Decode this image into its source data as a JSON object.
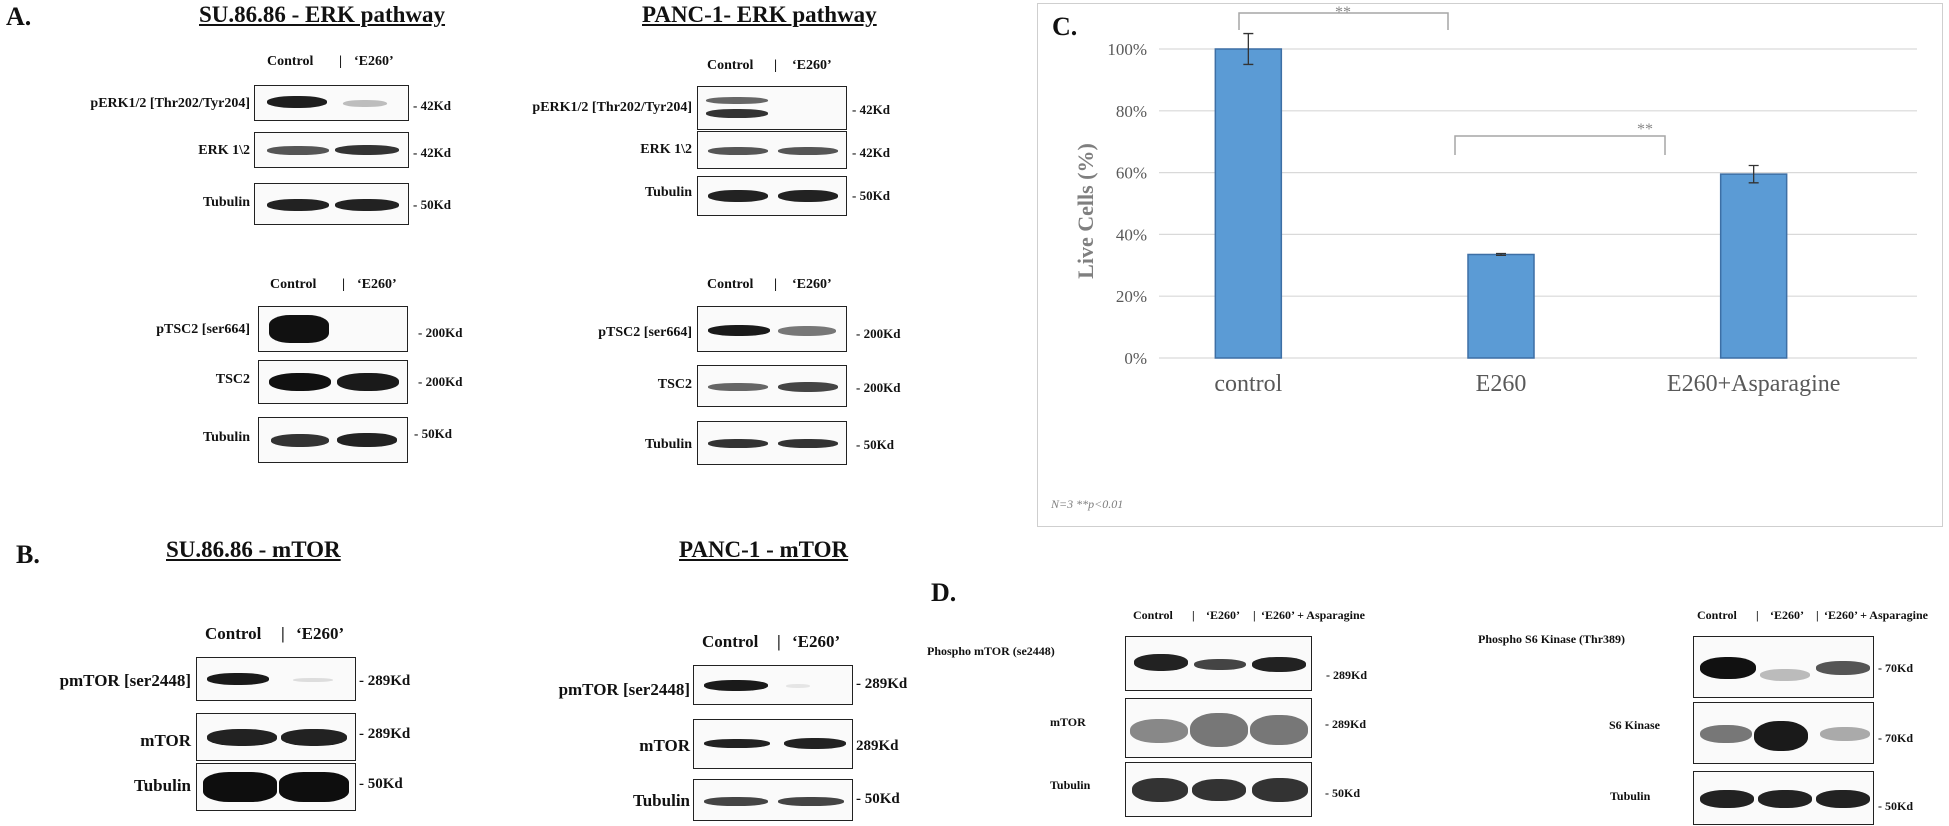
{
  "sectionA": {
    "letter": "A.",
    "left": {
      "title": "SU.86.86 - ERK pathway",
      "top": {
        "header": [
          "Control",
          "|",
          "‘E260’"
        ],
        "rows": [
          {
            "label": "pERK1/2 [Thr202/Tyr204]",
            "mw": "- 42Kd"
          },
          {
            "label": "ERK 1\\2",
            "mw": "- 42Kd"
          },
          {
            "label": "Tubulin",
            "mw": "- 50Kd"
          }
        ]
      },
      "bottom": {
        "header": [
          "Control",
          "|",
          "‘E260’"
        ],
        "rows": [
          {
            "label": "pTSC2 [ser664]",
            "mw": "- 200Kd"
          },
          {
            "label": "TSC2",
            "mw": "- 200Kd"
          },
          {
            "label": "Tubulin",
            "mw": "- 50Kd"
          }
        ]
      }
    },
    "right": {
      "title": "PANC-1- ERK pathway",
      "top": {
        "header": [
          "Control",
          "|",
          "‘E260’"
        ],
        "rows": [
          {
            "label": "pERK1/2 [Thr202/Tyr204]",
            "mw": "- 42Kd"
          },
          {
            "label": "ERK 1\\2",
            "mw": "- 42Kd"
          },
          {
            "label": "Tubulin",
            "mw": "- 50Kd"
          }
        ]
      },
      "bottom": {
        "header": [
          "Control",
          "|",
          "‘E260’"
        ],
        "rows": [
          {
            "label": "pTSC2 [ser664]",
            "mw": "- 200Kd"
          },
          {
            "label": "TSC2",
            "mw": "- 200Kd"
          },
          {
            "label": "Tubulin",
            "mw": "- 50Kd"
          }
        ]
      }
    }
  },
  "sectionB": {
    "letter": "B.",
    "left": {
      "title": "SU.86.86 - mTOR",
      "header": [
        "Control",
        "|",
        "‘E260’"
      ],
      "rows": [
        {
          "label": "pmTOR [ser2448]",
          "mw": "- 289Kd"
        },
        {
          "label": "mTOR",
          "mw": "- 289Kd"
        },
        {
          "label": "Tubulin",
          "mw": "- 50Kd"
        }
      ]
    },
    "right": {
      "title": "PANC-1 - mTOR",
      "header": [
        "Control",
        "|",
        "‘E260’"
      ],
      "rows": [
        {
          "label": "pmTOR [ser2448]",
          "mw": "- 289Kd"
        },
        {
          "label": "mTOR",
          "mw": "289Kd"
        },
        {
          "label": "Tubulin",
          "mw": "- 50Kd"
        }
      ]
    }
  },
  "sectionC": {
    "letter": "C.",
    "footnote": "N=3 **p<0.01",
    "significance": [
      "**",
      "**"
    ]
  },
  "sectionD": {
    "letter": "D.",
    "left": {
      "header": [
        "Control",
        "|",
        "‘E260’",
        "|",
        "‘E260’ + Asparagine"
      ],
      "rows": [
        {
          "label": "Phospho mTOR (se2448)",
          "mw": "-   289Kd"
        },
        {
          "label": "mTOR",
          "mw": "- 289Kd"
        },
        {
          "label": "Tubulin",
          "mw": "- 50Kd"
        }
      ]
    },
    "right": {
      "header": [
        "Control",
        "|",
        "‘E260’",
        "|",
        "‘E260’ + Asparagine"
      ],
      "rows": [
        {
          "label": "Phospho S6 Kinase (Thr389)",
          "mw": "- 70Kd"
        },
        {
          "label": "S6 Kinase",
          "mw": "- 70Kd"
        },
        {
          "label": "Tubulin",
          "mw": "- 50Kd"
        }
      ]
    }
  },
  "chart_data": {
    "type": "bar",
    "categories": [
      "control",
      "E260",
      "E260+Asparagine"
    ],
    "values": [
      100,
      33.5,
      59.5
    ],
    "errors": [
      5,
      0.3,
      2.8
    ],
    "ylabel": "Live Cells (%)",
    "ylim": [
      0,
      100
    ],
    "yticks": [
      "0%",
      "20%",
      "40%",
      "60%",
      "80%",
      "100%"
    ],
    "grid": true,
    "bar_color": "#5b9bd5"
  }
}
